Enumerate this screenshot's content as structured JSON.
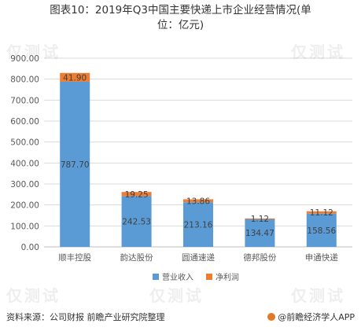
{
  "title_line1": "图表10：2019年Q3中国主要快递上市企业经营情况(单",
  "title_line2": "位：亿元)",
  "source": "资料来源：公司财报 前瞻产业研究院整理",
  "brand": "@前瞻经济学人APP",
  "watermark": "仅测试",
  "colors": {
    "revenue": "#5b9bd5",
    "profit": "#ed7d31",
    "grid": "#d9d9d9",
    "axis_text": "#595959"
  },
  "chart_data": {
    "type": "bar",
    "stacked": true,
    "categories": [
      "顺丰控股",
      "韵达股份",
      "圆通速递",
      "德邦股份",
      "申通快递"
    ],
    "series": [
      {
        "name": "营业收入",
        "values": [
          787.7,
          242.53,
          213.16,
          134.47,
          158.56
        ],
        "labels": [
          "787.70",
          "242.53",
          "213.16",
          "134.47",
          "158.56"
        ]
      },
      {
        "name": "净利润",
        "values": [
          41.9,
          19.25,
          13.86,
          1.12,
          11.12
        ],
        "labels": [
          "41.90",
          "19.25",
          "13.86",
          "1.12",
          "11.12"
        ]
      }
    ],
    "ylim": [
      0,
      900
    ],
    "yticks": [
      "0.00",
      "100.00",
      "200.00",
      "300.00",
      "400.00",
      "500.00",
      "600.00",
      "700.00",
      "800.00",
      "900.00"
    ],
    "grid": true,
    "legend_position": "bottom"
  }
}
